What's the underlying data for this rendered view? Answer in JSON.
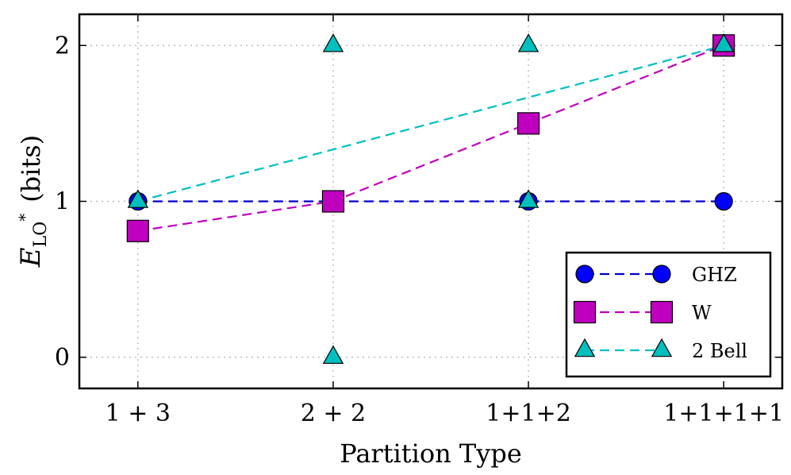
{
  "chart_data": {
    "type": "line",
    "title": "",
    "xlabel": "Partition Type",
    "ylabel_main": "E",
    "ylabel_sub": "LO",
    "ylabel_sup": "*",
    "ylabel_unit": "(bits)",
    "categories": [
      "1 + 3",
      "2 + 2",
      "1+1+2",
      "1+1+1+1"
    ],
    "y_ticks": [
      "0",
      "1",
      "2"
    ],
    "y_tick_values": [
      0,
      1,
      2
    ],
    "ylim": [
      -0.2,
      2.2
    ],
    "grid": true,
    "legend_position": "lower-right",
    "series": [
      {
        "name": "GHZ",
        "marker": "circle",
        "color": "#0000ff",
        "line_color": "#0000cc",
        "values": [
          1,
          1,
          1,
          1
        ],
        "line_values": [
          1,
          1,
          1,
          1
        ]
      },
      {
        "name": "W",
        "marker": "square",
        "color": "#bf00bf",
        "line_color": "#bf00bf",
        "values": [
          0.81,
          1,
          1.5,
          2
        ],
        "line_values": [
          0.81,
          1,
          1.5,
          2
        ]
      },
      {
        "name": "2 Bell",
        "marker": "triangle",
        "color": "#00bfbf",
        "line_color": "#00bfbf",
        "points": [
          {
            "category": 0,
            "value": 1
          },
          {
            "category": 1,
            "value": 2
          },
          {
            "category": 1,
            "value": 0
          },
          {
            "category": 2,
            "value": 2
          },
          {
            "category": 2,
            "value": 1
          },
          {
            "category": 3,
            "value": 2
          }
        ],
        "line_values": [
          1,
          1.333,
          1.667,
          2
        ]
      }
    ]
  }
}
